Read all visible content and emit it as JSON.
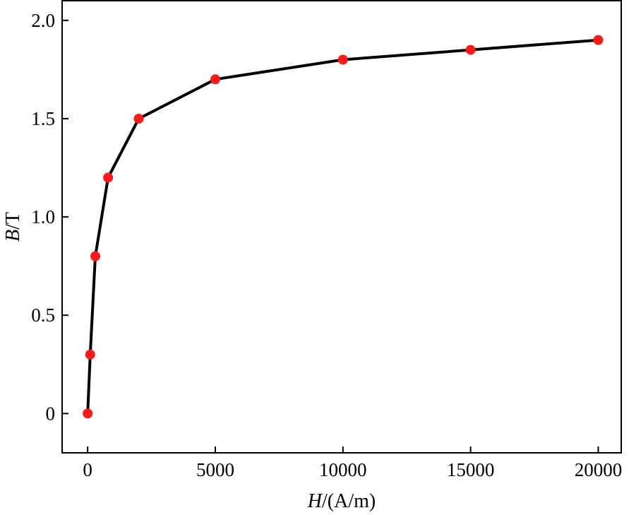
{
  "chart_data": {
    "type": "line",
    "title": "",
    "xlabel": {
      "symbol": "H",
      "unit": "/(A/m)"
    },
    "ylabel": {
      "symbol": "B",
      "unit": "/T"
    },
    "x": [
      0,
      100,
      300,
      800,
      2000,
      5000,
      10000,
      15000,
      20000
    ],
    "series": [
      {
        "values": [
          0,
          0.3,
          0.8,
          1.2,
          1.5,
          1.7,
          1.8,
          1.85,
          1.9
        ]
      }
    ],
    "xlim": [
      -1000,
      20900
    ],
    "ylim": [
      -0.2,
      2.1
    ],
    "xticks": [
      0,
      5000,
      10000,
      15000,
      20000
    ],
    "xtick_labels": [
      "0",
      "5000",
      "10000",
      "15000",
      "20000"
    ],
    "yticks": [
      0,
      0.5,
      1.0,
      1.5,
      2.0
    ],
    "ytick_labels": [
      "0",
      "0.5",
      "1.0",
      "1.5",
      "2.0"
    ],
    "grid": false,
    "legend": "none",
    "colors": {
      "line": "#000000",
      "marker": "#ff1a1a"
    }
  }
}
